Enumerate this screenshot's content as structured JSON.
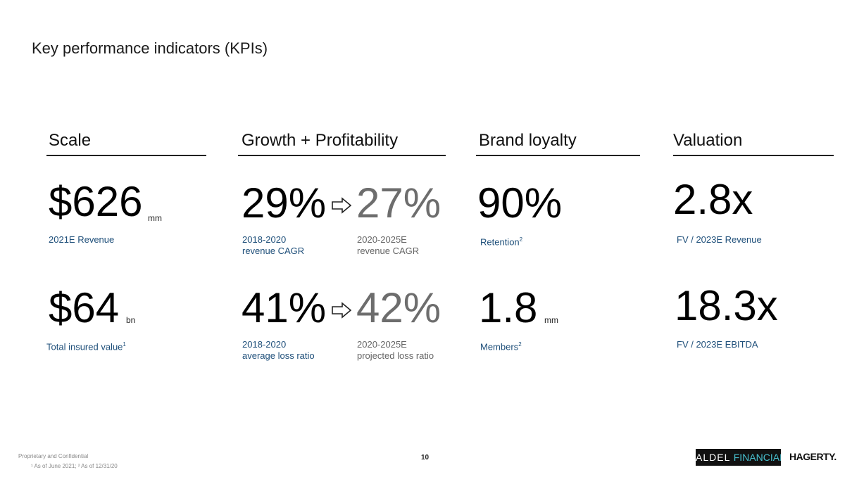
{
  "page": {
    "title": "Key performance indicators (KPIs)"
  },
  "columns": {
    "scale": {
      "heading": "Scale",
      "kpi1": {
        "value": "$626",
        "unit": "mm",
        "caption": "2021E Revenue"
      },
      "kpi2": {
        "value": "$64",
        "unit": "bn",
        "caption": "Total insured value",
        "sup": "1"
      }
    },
    "growth": {
      "heading": "Growth + Profitability",
      "kpi1": {
        "from_value": "29%",
        "from_caption": "2018-2020\nrevenue CAGR",
        "to_value": "27%",
        "to_caption": "2020-2025E\nrevenue CAGR"
      },
      "kpi2": {
        "from_value": "41%",
        "from_caption": "2018-2020\naverage loss ratio",
        "to_value": "42%",
        "to_caption": "2020-2025E\nprojected loss ratio"
      }
    },
    "brand": {
      "heading": "Brand loyalty",
      "kpi1": {
        "value": "90%",
        "caption": "Retention",
        "sup": "2"
      },
      "kpi2": {
        "value": "1.8",
        "unit": "mm",
        "caption": "Members",
        "sup": "2"
      }
    },
    "valuation": {
      "heading": "Valuation",
      "kpi1": {
        "value": "2.8x",
        "caption": "FV / 2023E Revenue"
      },
      "kpi2": {
        "value": "18.3x",
        "caption": "FV / 2023E EBITDA"
      }
    }
  },
  "footer": {
    "confidential": "Proprietary and Confidential",
    "footnote": "¹ As of June 2021; ² As of 12/31/20",
    "page_number": "10",
    "logo_aldel": "ALDEL",
    "logo_financial": "FINANCIAL",
    "logo_hagerty": "HAGERTY."
  },
  "colors": {
    "caption_blue": "#1d4e79",
    "secondary_gray": "#6d6d6d",
    "logo_teal": "#48c0cf"
  }
}
